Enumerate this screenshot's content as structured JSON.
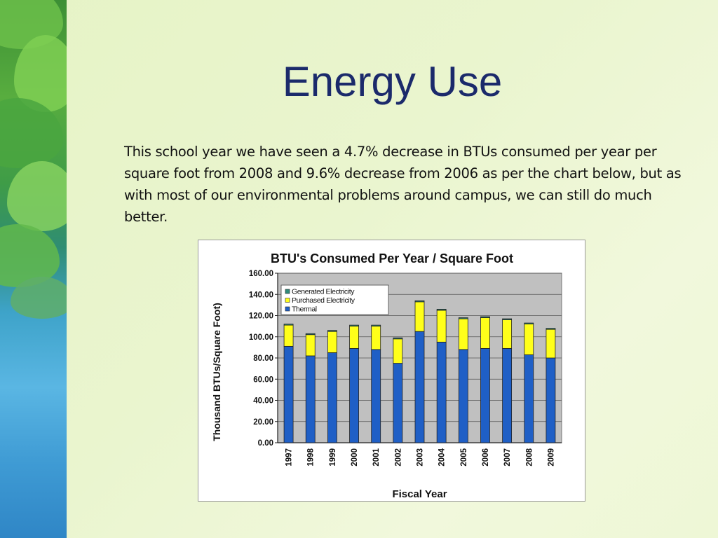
{
  "slide": {
    "title": "Energy Use",
    "body": "This school year we have seen a 4.7% decrease in BTUs consumed per year per square foot from 2008 and 9.6% decrease from 2006 as per the chart below, but as with most of our environmental problems around campus, we can still do much better."
  },
  "colors": {
    "title": "#1b2a6b",
    "thermal": "#1f5fc6",
    "purchased": "#ffff1a",
    "generated": "#2e8b7a",
    "plot_background": "#c0c0c0"
  },
  "chart_data": {
    "type": "bar",
    "stacked": true,
    "title": "BTU's Consumed Per Year / Square Foot",
    "xlabel": "Fiscal Year",
    "ylabel": "Thousand BTUs/Square Foot)",
    "ylim": [
      0,
      160
    ],
    "yticks": [
      "0.00",
      "20.00",
      "40.00",
      "60.00",
      "80.00",
      "100.00",
      "120.00",
      "140.00",
      "160.00"
    ],
    "grid": true,
    "legend_position": "top-left",
    "categories": [
      "1997",
      "1998",
      "1999",
      "2000",
      "2001",
      "2002",
      "2003",
      "2004",
      "2005",
      "2006",
      "2007",
      "2008",
      "2009"
    ],
    "series": [
      {
        "name": "Thermal",
        "values": [
          91,
          82,
          85,
          89,
          88,
          75,
          105,
          95,
          88,
          89,
          89,
          83,
          80
        ]
      },
      {
        "name": "Purchased Electricity",
        "values": [
          20,
          20,
          20,
          21,
          22,
          23,
          28,
          30,
          29,
          29,
          27,
          29,
          27
        ]
      },
      {
        "name": "Generated Electricity",
        "values": [
          1,
          1,
          1,
          1,
          1,
          1,
          1,
          1,
          1,
          1,
          1,
          1,
          1
        ]
      }
    ],
    "legend_order": [
      "Generated Electricity",
      "Purchased Electricity",
      "Thermal"
    ]
  }
}
